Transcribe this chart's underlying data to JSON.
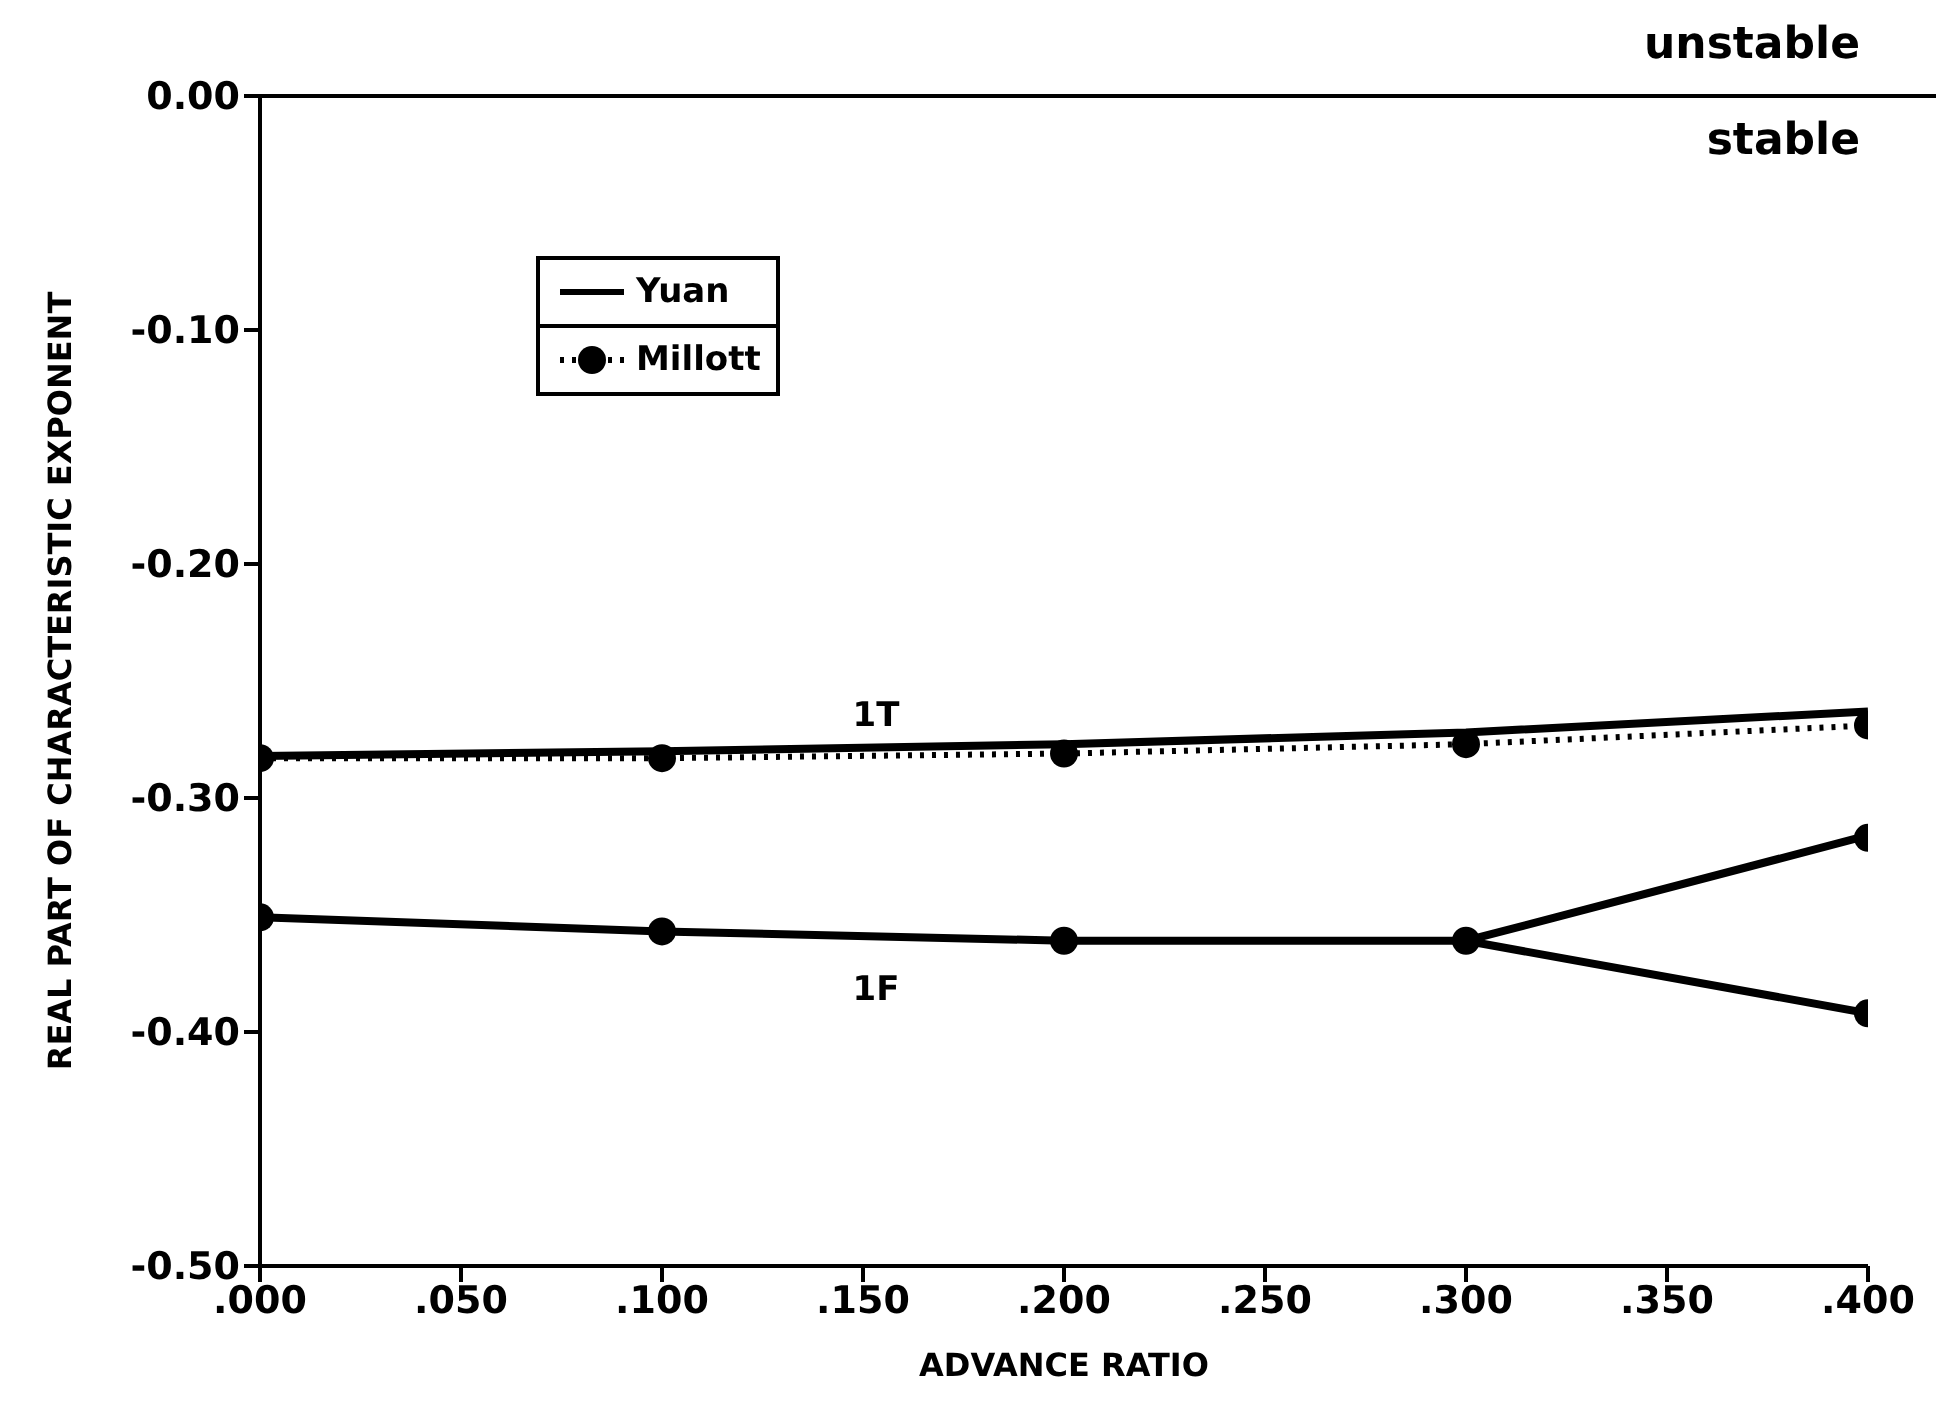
{
  "chart_data": {
    "type": "line",
    "xlabel": "ADVANCE RATIO",
    "ylabel": "REAL PART OF CHARACTERISTIC EXPONENT",
    "xlim": [
      0,
      0.4
    ],
    "ylim": [
      -0.5,
      0
    ],
    "xticks": [
      {
        "value": 0,
        "label": ".000"
      },
      {
        "value": 0.05,
        "label": ".050"
      },
      {
        "value": 0.1,
        "label": ".100"
      },
      {
        "value": 0.15,
        "label": ".150"
      },
      {
        "value": 0.2,
        "label": ".200"
      },
      {
        "value": 0.25,
        "label": ".250"
      },
      {
        "value": 0.3,
        "label": ".300"
      },
      {
        "value": 0.35,
        "label": ".350"
      },
      {
        "value": 0.4,
        "label": ".400"
      }
    ],
    "yticks": [
      {
        "value": -0.5,
        "label": "-0.50"
      },
      {
        "value": -0.4,
        "label": "-0.40"
      },
      {
        "value": -0.3,
        "label": "-0.30"
      },
      {
        "value": -0.2,
        "label": "-0.20"
      },
      {
        "value": -0.1,
        "label": "-0.10"
      },
      {
        "value": 0,
        "label": "0.00"
      }
    ],
    "grid": false,
    "legend": "top left",
    "series": [
      {
        "name": "Yuan",
        "color": "#000000",
        "line_style": "solid",
        "marker": "none",
        "x": [
          0,
          0.1,
          0.2,
          0.3,
          0.4
        ],
        "values": [
          -0.282,
          -0.28,
          -0.277,
          -0.272,
          -0.263
        ]
      },
      {
        "color": "#000000",
        "line_style": "solid",
        "marker": "none",
        "x": [
          0,
          0.1,
          0.2,
          0.3,
          0.4
        ],
        "values": [
          -0.351,
          -0.357,
          -0.361,
          -0.361,
          -0.316
        ]
      },
      {
        "color": "#000000",
        "line_style": "solid",
        "marker": "none",
        "x": [
          0.3,
          0.4
        ],
        "values": [
          -0.361,
          -0.392
        ]
      },
      {
        "name": "Millott",
        "color": "#000000",
        "line_style": "dotted",
        "marker": "circle",
        "x": [
          0,
          0.1,
          0.2,
          0.3,
          0.4
        ],
        "values": [
          -0.283,
          -0.283,
          -0.281,
          -0.277,
          -0.269
        ]
      },
      {
        "type": "scatter",
        "color": "#000000",
        "marker": "circle",
        "x": [
          0,
          0.1,
          0.2,
          0.3,
          0.4,
          0.4
        ],
        "values": [
          -0.351,
          -0.357,
          -0.361,
          -0.361,
          -0.317,
          -0.392
        ]
      }
    ],
    "ref_lines": [
      {
        "axis": "y",
        "value": 0,
        "color": "#000000"
      }
    ],
    "annotations": [
      "1T",
      "1F",
      "unstable",
      "stable"
    ]
  }
}
